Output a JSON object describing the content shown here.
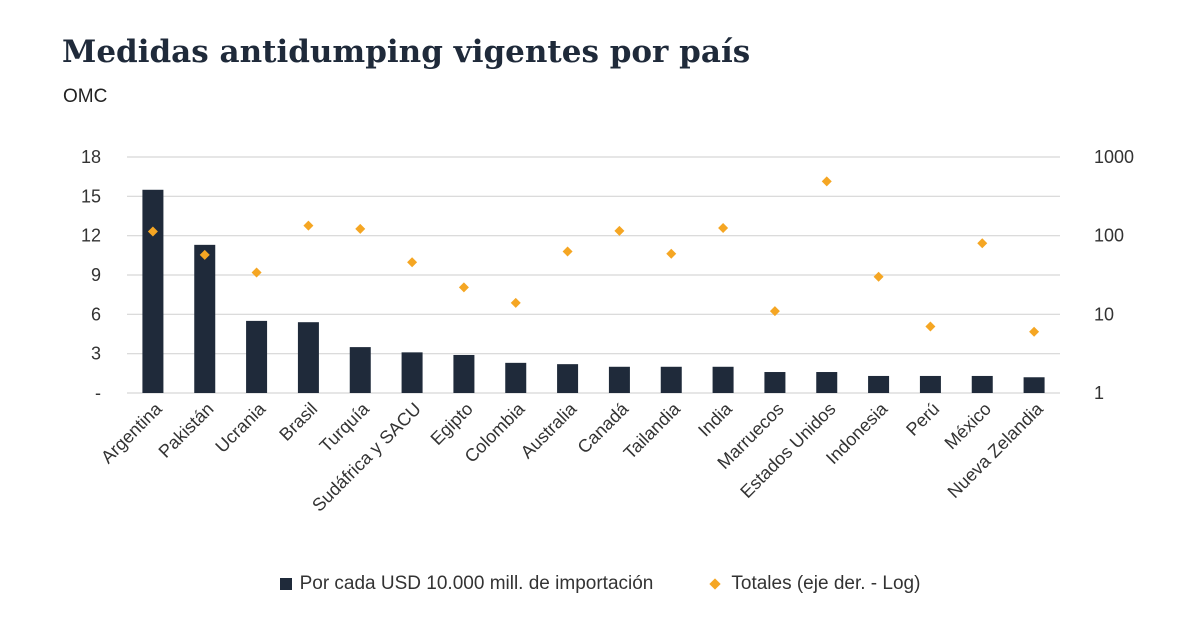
{
  "header": {
    "title": "Medidas antidumping vigentes por país",
    "subtitle": "OMC"
  },
  "colors": {
    "bar": "#1f2a3a",
    "marker": "#f5a623",
    "grid": "#d6d6d6",
    "text": "#333333"
  },
  "chart_data": {
    "type": "bar",
    "categories": [
      "Argentina",
      "Pakistán",
      "Ucrania",
      "Brasil",
      "Turquía",
      "Sudáfrica y SACU",
      "Egipto",
      "Colombia",
      "Australia",
      "Canadá",
      "Tailandia",
      "India",
      "Marruecos",
      "Estados Unidos",
      "Indonesia",
      "Perú",
      "México",
      "Nueva Zelandia"
    ],
    "series": [
      {
        "name": "Por cada USD 10.000 mill. de importación",
        "type": "bar",
        "axis": "left",
        "values": [
          15.5,
          11.3,
          5.5,
          5.4,
          3.5,
          3.1,
          2.9,
          2.3,
          2.2,
          2.0,
          2.0,
          2.0,
          1.6,
          1.6,
          1.3,
          1.3,
          1.3,
          1.2
        ]
      },
      {
        "name": "Totales (eje der. - Log)",
        "type": "scatter",
        "axis": "right",
        "values": [
          113,
          57,
          34,
          134,
          122,
          46,
          22,
          14,
          63,
          115,
          59,
          125,
          11,
          490,
          30,
          7,
          80,
          6
        ]
      }
    ],
    "y_left": {
      "ylim": [
        0,
        18
      ],
      "ticks": [
        0,
        3,
        6,
        9,
        12,
        15,
        18
      ],
      "tick_labels": [
        "-",
        "3",
        "6",
        "9",
        "12",
        "15",
        "18"
      ]
    },
    "y_right": {
      "scale": "log",
      "ylim": [
        1,
        1000
      ],
      "ticks": [
        1,
        10,
        100,
        1000
      ],
      "tick_labels": [
        "1",
        "10",
        "100",
        "1000"
      ]
    },
    "grid": true,
    "legend_position": "bottom"
  }
}
